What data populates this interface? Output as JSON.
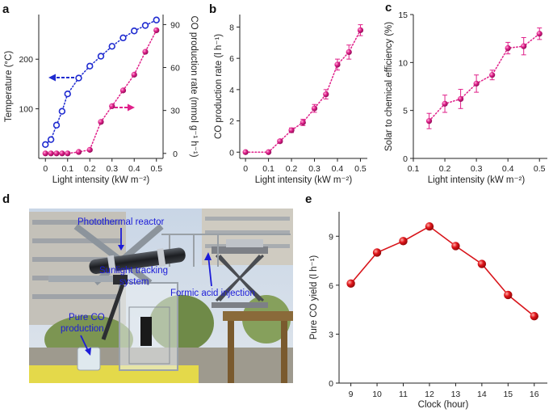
{
  "panel_labels": {
    "a": "a",
    "b": "b",
    "c": "c",
    "d": "d",
    "e": "e"
  },
  "photo_annotations": {
    "reactor": "Photothermal reactor",
    "tracking_line1": "Sunlight tracking",
    "tracking_line2": "system",
    "injection": "Formic acid injection",
    "co_line1": "Pure CO",
    "co_line2": "production"
  },
  "colors": {
    "temperature": "#1f2bd0",
    "magenta": "#e0208a",
    "red": "#d8141a",
    "annotation": "#1c1cd8"
  },
  "chart_data": [
    {
      "panel": "a",
      "type": "scatter",
      "xlabel": "Light intensity (kW m⁻²)",
      "xticks": [
        "0",
        "0.1",
        "0.2",
        "0.3",
        "0.4",
        "0.5"
      ],
      "xlim": [
        -0.03,
        0.53
      ],
      "ylabel_left": "Temperature (°C)",
      "yticks_left": [
        "100",
        "200"
      ],
      "ylim_left": [
        0,
        290
      ],
      "ylabel_right": "CO production rate (mmol g⁻¹ h⁻¹)",
      "yticks_right": [
        "0",
        "30",
        "60",
        "90"
      ],
      "ylim_right": [
        -3.5,
        97
      ],
      "series": [
        {
          "name": "Temperature",
          "axis": "left",
          "marker": "open-circle",
          "x": [
            0,
            0.025,
            0.05,
            0.075,
            0.1,
            0.15,
            0.2,
            0.25,
            0.3,
            0.35,
            0.4,
            0.45,
            0.5
          ],
          "values": [
            28,
            38,
            67,
            95,
            130,
            162,
            186,
            206,
            226,
            243,
            257,
            268,
            279
          ]
        },
        {
          "name": "CO production rate",
          "axis": "right",
          "marker": "filled-circle",
          "x": [
            0,
            0.025,
            0.05,
            0.075,
            0.1,
            0.15,
            0.2,
            0.25,
            0.3,
            0.35,
            0.4,
            0.45,
            0.5
          ],
          "values": [
            0,
            0,
            0,
            0,
            0,
            1,
            2.5,
            22,
            33,
            44,
            55,
            71,
            86
          ]
        }
      ]
    },
    {
      "panel": "b",
      "type": "scatter",
      "xlabel": "Light intensity (kW m⁻²)",
      "ylabel": "CO production rate (l h⁻¹)",
      "xticks": [
        "0",
        "0.1",
        "0.2",
        "0.3",
        "0.4",
        "0.5"
      ],
      "yticks": [
        "0",
        "2",
        "4",
        "6",
        "8"
      ],
      "xlim": [
        -0.025,
        0.53
      ],
      "ylim": [
        -0.4,
        8.8
      ],
      "x": [
        0,
        0.1,
        0.15,
        0.2,
        0.25,
        0.3,
        0.35,
        0.4,
        0.45,
        0.5
      ],
      "values": [
        0,
        0,
        0.7,
        1.4,
        1.9,
        2.8,
        3.7,
        5.6,
        6.4,
        7.8
      ],
      "errors": [
        0,
        0,
        0.1,
        0.15,
        0.2,
        0.25,
        0.3,
        0.35,
        0.45,
        0.35
      ]
    },
    {
      "panel": "c",
      "type": "scatter",
      "xlabel": "Light intensity (kW m⁻²)",
      "ylabel": "Solar to chemical efficiency (%)",
      "xticks": [
        "0.1",
        "0.2",
        "0.3",
        "0.4",
        "0.5"
      ],
      "yticks": [
        "0",
        "5",
        "10",
        "15"
      ],
      "xlim": [
        0.1,
        0.525
      ],
      "ylim": [
        0,
        15
      ],
      "x": [
        0.15,
        0.2,
        0.25,
        0.3,
        0.35,
        0.4,
        0.45,
        0.5
      ],
      "values": [
        3.9,
        5.7,
        6.2,
        7.8,
        8.7,
        11.5,
        11.7,
        13.0
      ],
      "errors": [
        0.8,
        0.9,
        1.0,
        0.9,
        0.5,
        0.6,
        0.9,
        0.6
      ]
    },
    {
      "panel": "e",
      "type": "line",
      "xlabel": "Clock (hour)",
      "ylabel": "Pure CO yield (l h⁻¹)",
      "categories": [
        "9",
        "10",
        "11",
        "12",
        "13",
        "14",
        "15",
        "16"
      ],
      "values": [
        6.1,
        8.0,
        8.7,
        9.6,
        8.4,
        7.3,
        5.4,
        4.1
      ],
      "yticks": [
        "0",
        "3",
        "6",
        "9"
      ],
      "ylim": [
        0,
        10.5
      ],
      "xlim": [
        8.55,
        16.5
      ]
    }
  ]
}
